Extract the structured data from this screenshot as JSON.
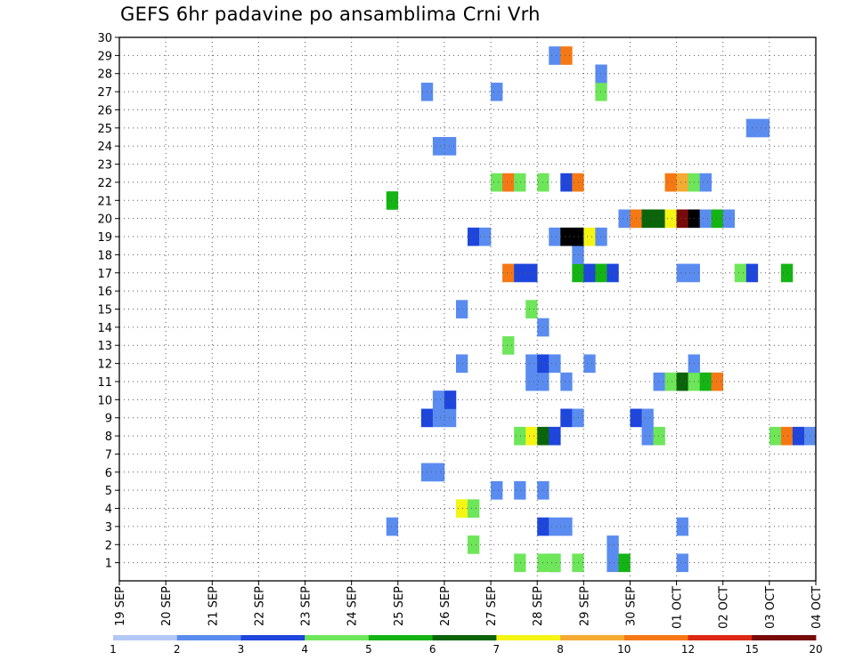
{
  "chart_data": {
    "type": "heatmap",
    "title": "GEFS 6hr padavine po ansamblima Crni Vrh",
    "xlabel": "",
    "ylabel": "",
    "x_tick_labels": [
      "19 SEP",
      "20 SEP",
      "21 SEP",
      "22 SEP",
      "23 SEP",
      "24 SEP",
      "25 SEP",
      "26 SEP",
      "27 SEP",
      "28 SEP",
      "29 SEP",
      "30 SEP",
      "01 OCT",
      "02 OCT",
      "03 OCT",
      "04 OCT"
    ],
    "xlim_steps": [
      0,
      60
    ],
    "y_tick_labels": [
      "1",
      "2",
      "3",
      "4",
      "5",
      "6",
      "7",
      "8",
      "9",
      "10",
      "11",
      "12",
      "13",
      "14",
      "15",
      "16",
      "17",
      "18",
      "19",
      "20",
      "21",
      "22",
      "23",
      "24",
      "25",
      "26",
      "27",
      "28",
      "29",
      "30"
    ],
    "ylim": [
      0,
      30
    ],
    "legend": {
      "position": "bottom",
      "colors": [
        "#b4c8f5",
        "#5a8cf0",
        "#1e46dc",
        "#6ee65a",
        "#14b414",
        "#0a640a",
        "#f5f514",
        "#f5aa32",
        "#f57814",
        "#dc2814",
        "#780a0a"
      ],
      "labels": [
        "1",
        "2",
        "3",
        "4",
        "5",
        "6",
        "7",
        "8",
        "10",
        "12",
        "15",
        "20"
      ]
    },
    "cells": [
      {
        "m": 0,
        "s": 37,
        "v": 2
      },
      {
        "m": 0,
        "s": 39,
        "v": 3
      },
      {
        "m": 0,
        "s": 36,
        "v": 3
      },
      {
        "m": 0,
        "s": 34,
        "v": 3
      },
      {
        "m": 0,
        "s": 37,
        "v": 3
      },
      {
        "m": 0,
        "s": 42,
        "v": 1
      },
      {
        "m": 0,
        "s": 43,
        "v": 4
      },
      {
        "m": 0,
        "s": 48,
        "v": 1
      },
      {
        "m": 1,
        "s": 30,
        "v": 3
      },
      {
        "m": 1,
        "s": 42,
        "v": 1
      },
      {
        "m": 2,
        "s": 23,
        "v": 1
      },
      {
        "m": 2,
        "s": 36,
        "v": 2
      },
      {
        "m": 2,
        "s": 37,
        "v": 1
      },
      {
        "m": 2,
        "s": 38,
        "v": 1
      },
      {
        "m": 2,
        "s": 48,
        "v": 1
      },
      {
        "m": 3,
        "s": 29,
        "v": 6
      },
      {
        "m": 3,
        "s": 30,
        "v": 3
      },
      {
        "m": 4,
        "s": 32,
        "v": 1
      },
      {
        "m": 4,
        "s": 34,
        "v": 1
      },
      {
        "m": 4,
        "s": 36,
        "v": 1
      },
      {
        "m": 5,
        "s": 26,
        "v": 1
      },
      {
        "m": 5,
        "s": 27,
        "v": 1
      },
      {
        "m": 7,
        "s": 34,
        "v": 3
      },
      {
        "m": 7,
        "s": 35,
        "v": 6
      },
      {
        "m": 7,
        "s": 36,
        "v": 5
      },
      {
        "m": 7,
        "s": 37,
        "v": 2
      },
      {
        "m": 7,
        "s": 45,
        "v": 1
      },
      {
        "m": 7,
        "s": 46,
        "v": 3
      },
      {
        "m": 7,
        "s": 56,
        "v": 3
      },
      {
        "m": 7,
        "s": 57,
        "v": 8
      },
      {
        "m": 7,
        "s": 58,
        "v": 2
      },
      {
        "m": 7,
        "s": 59,
        "v": 1
      },
      {
        "m": 8,
        "s": 26,
        "v": 2
      },
      {
        "m": 8,
        "s": 27,
        "v": 1
      },
      {
        "m": 8,
        "s": 28,
        "v": 1
      },
      {
        "m": 8,
        "s": 38,
        "v": 2
      },
      {
        "m": 8,
        "s": 39,
        "v": 1
      },
      {
        "m": 8,
        "s": 44,
        "v": 2
      },
      {
        "m": 8,
        "s": 45,
        "v": 1
      },
      {
        "m": 9,
        "s": 27,
        "v": 1
      },
      {
        "m": 9,
        "s": 28,
        "v": 2
      },
      {
        "m": 10,
        "s": 35,
        "v": 1
      },
      {
        "m": 10,
        "s": 36,
        "v": 1
      },
      {
        "m": 10,
        "s": 38,
        "v": 1
      },
      {
        "m": 10,
        "s": 46,
        "v": 1
      },
      {
        "m": 10,
        "s": 47,
        "v": 3
      },
      {
        "m": 10,
        "s": 48,
        "v": 5
      },
      {
        "m": 10,
        "s": 49,
        "v": 3
      },
      {
        "m": 10,
        "s": 50,
        "v": 4
      },
      {
        "m": 10,
        "s": 51,
        "v": 8
      },
      {
        "m": 11,
        "s": 29,
        "v": 1
      },
      {
        "m": 11,
        "s": 35,
        "v": 1
      },
      {
        "m": 11,
        "s": 36,
        "v": 2
      },
      {
        "m": 11,
        "s": 37,
        "v": 1
      },
      {
        "m": 11,
        "s": 40,
        "v": 1
      },
      {
        "m": 11,
        "s": 49,
        "v": 1
      },
      {
        "m": 12,
        "s": 33,
        "v": 3
      },
      {
        "m": 13,
        "s": 36,
        "v": 1
      },
      {
        "m": 14,
        "s": 29,
        "v": 1
      },
      {
        "m": 14,
        "s": 35,
        "v": 3
      },
      {
        "m": 16,
        "s": 33,
        "v": 8
      },
      {
        "m": 16,
        "s": 34,
        "v": 2
      },
      {
        "m": 16,
        "s": 35,
        "v": 2
      },
      {
        "m": 16,
        "s": 39,
        "v": 4
      },
      {
        "m": 16,
        "s": 40,
        "v": 2
      },
      {
        "m": 16,
        "s": 41,
        "v": 4
      },
      {
        "m": 16,
        "s": 42,
        "v": 2
      },
      {
        "m": 16,
        "s": 48,
        "v": 1
      },
      {
        "m": 16,
        "s": 49,
        "v": 1
      },
      {
        "m": 16,
        "s": 53,
        "v": 3
      },
      {
        "m": 16,
        "s": 54,
        "v": 2
      },
      {
        "m": 16,
        "s": 57,
        "v": 4
      },
      {
        "m": 17,
        "s": 39,
        "v": 1
      },
      {
        "m": 18,
        "s": 30,
        "v": 2
      },
      {
        "m": 18,
        "s": 31,
        "v": 1
      },
      {
        "m": 18,
        "s": 37,
        "v": 1
      },
      {
        "m": 18,
        "s": 38,
        "v": 12
      },
      {
        "m": 18,
        "s": 39,
        "v": 12
      },
      {
        "m": 18,
        "s": 40,
        "v": 6
      },
      {
        "m": 18,
        "s": 41,
        "v": 1
      },
      {
        "m": 19,
        "s": 43,
        "v": 1
      },
      {
        "m": 19,
        "s": 44,
        "v": 8
      },
      {
        "m": 19,
        "s": 45,
        "v": 5
      },
      {
        "m": 19,
        "s": 46,
        "v": 5
      },
      {
        "m": 19,
        "s": 47,
        "v": 6
      },
      {
        "m": 19,
        "s": 48,
        "v": 10
      },
      {
        "m": 19,
        "s": 49,
        "v": 12
      },
      {
        "m": 19,
        "s": 50,
        "v": 1
      },
      {
        "m": 19,
        "s": 51,
        "v": 4
      },
      {
        "m": 19,
        "s": 52,
        "v": 1
      },
      {
        "m": 20,
        "s": 23,
        "v": 4
      },
      {
        "m": 21,
        "s": 32,
        "v": 3
      },
      {
        "m": 21,
        "s": 33,
        "v": 8
      },
      {
        "m": 21,
        "s": 34,
        "v": 3
      },
      {
        "m": 21,
        "s": 36,
        "v": 3
      },
      {
        "m": 21,
        "s": 38,
        "v": 2
      },
      {
        "m": 21,
        "s": 39,
        "v": 8
      },
      {
        "m": 21,
        "s": 47,
        "v": 8
      },
      {
        "m": 21,
        "s": 48,
        "v": 7
      },
      {
        "m": 21,
        "s": 49,
        "v": 3
      },
      {
        "m": 21,
        "s": 50,
        "v": 1
      },
      {
        "m": 23,
        "s": 27,
        "v": 1
      },
      {
        "m": 23,
        "s": 28,
        "v": 1
      },
      {
        "m": 24,
        "s": 54,
        "v": 1
      },
      {
        "m": 24,
        "s": 55,
        "v": 1
      },
      {
        "m": 26,
        "s": 26,
        "v": 1
      },
      {
        "m": 26,
        "s": 32,
        "v": 1
      },
      {
        "m": 26,
        "s": 41,
        "v": 3
      },
      {
        "m": 27,
        "s": 41,
        "v": 1
      },
      {
        "m": 28,
        "s": 37,
        "v": 1
      },
      {
        "m": 28,
        "s": 38,
        "v": 8
      }
    ]
  }
}
